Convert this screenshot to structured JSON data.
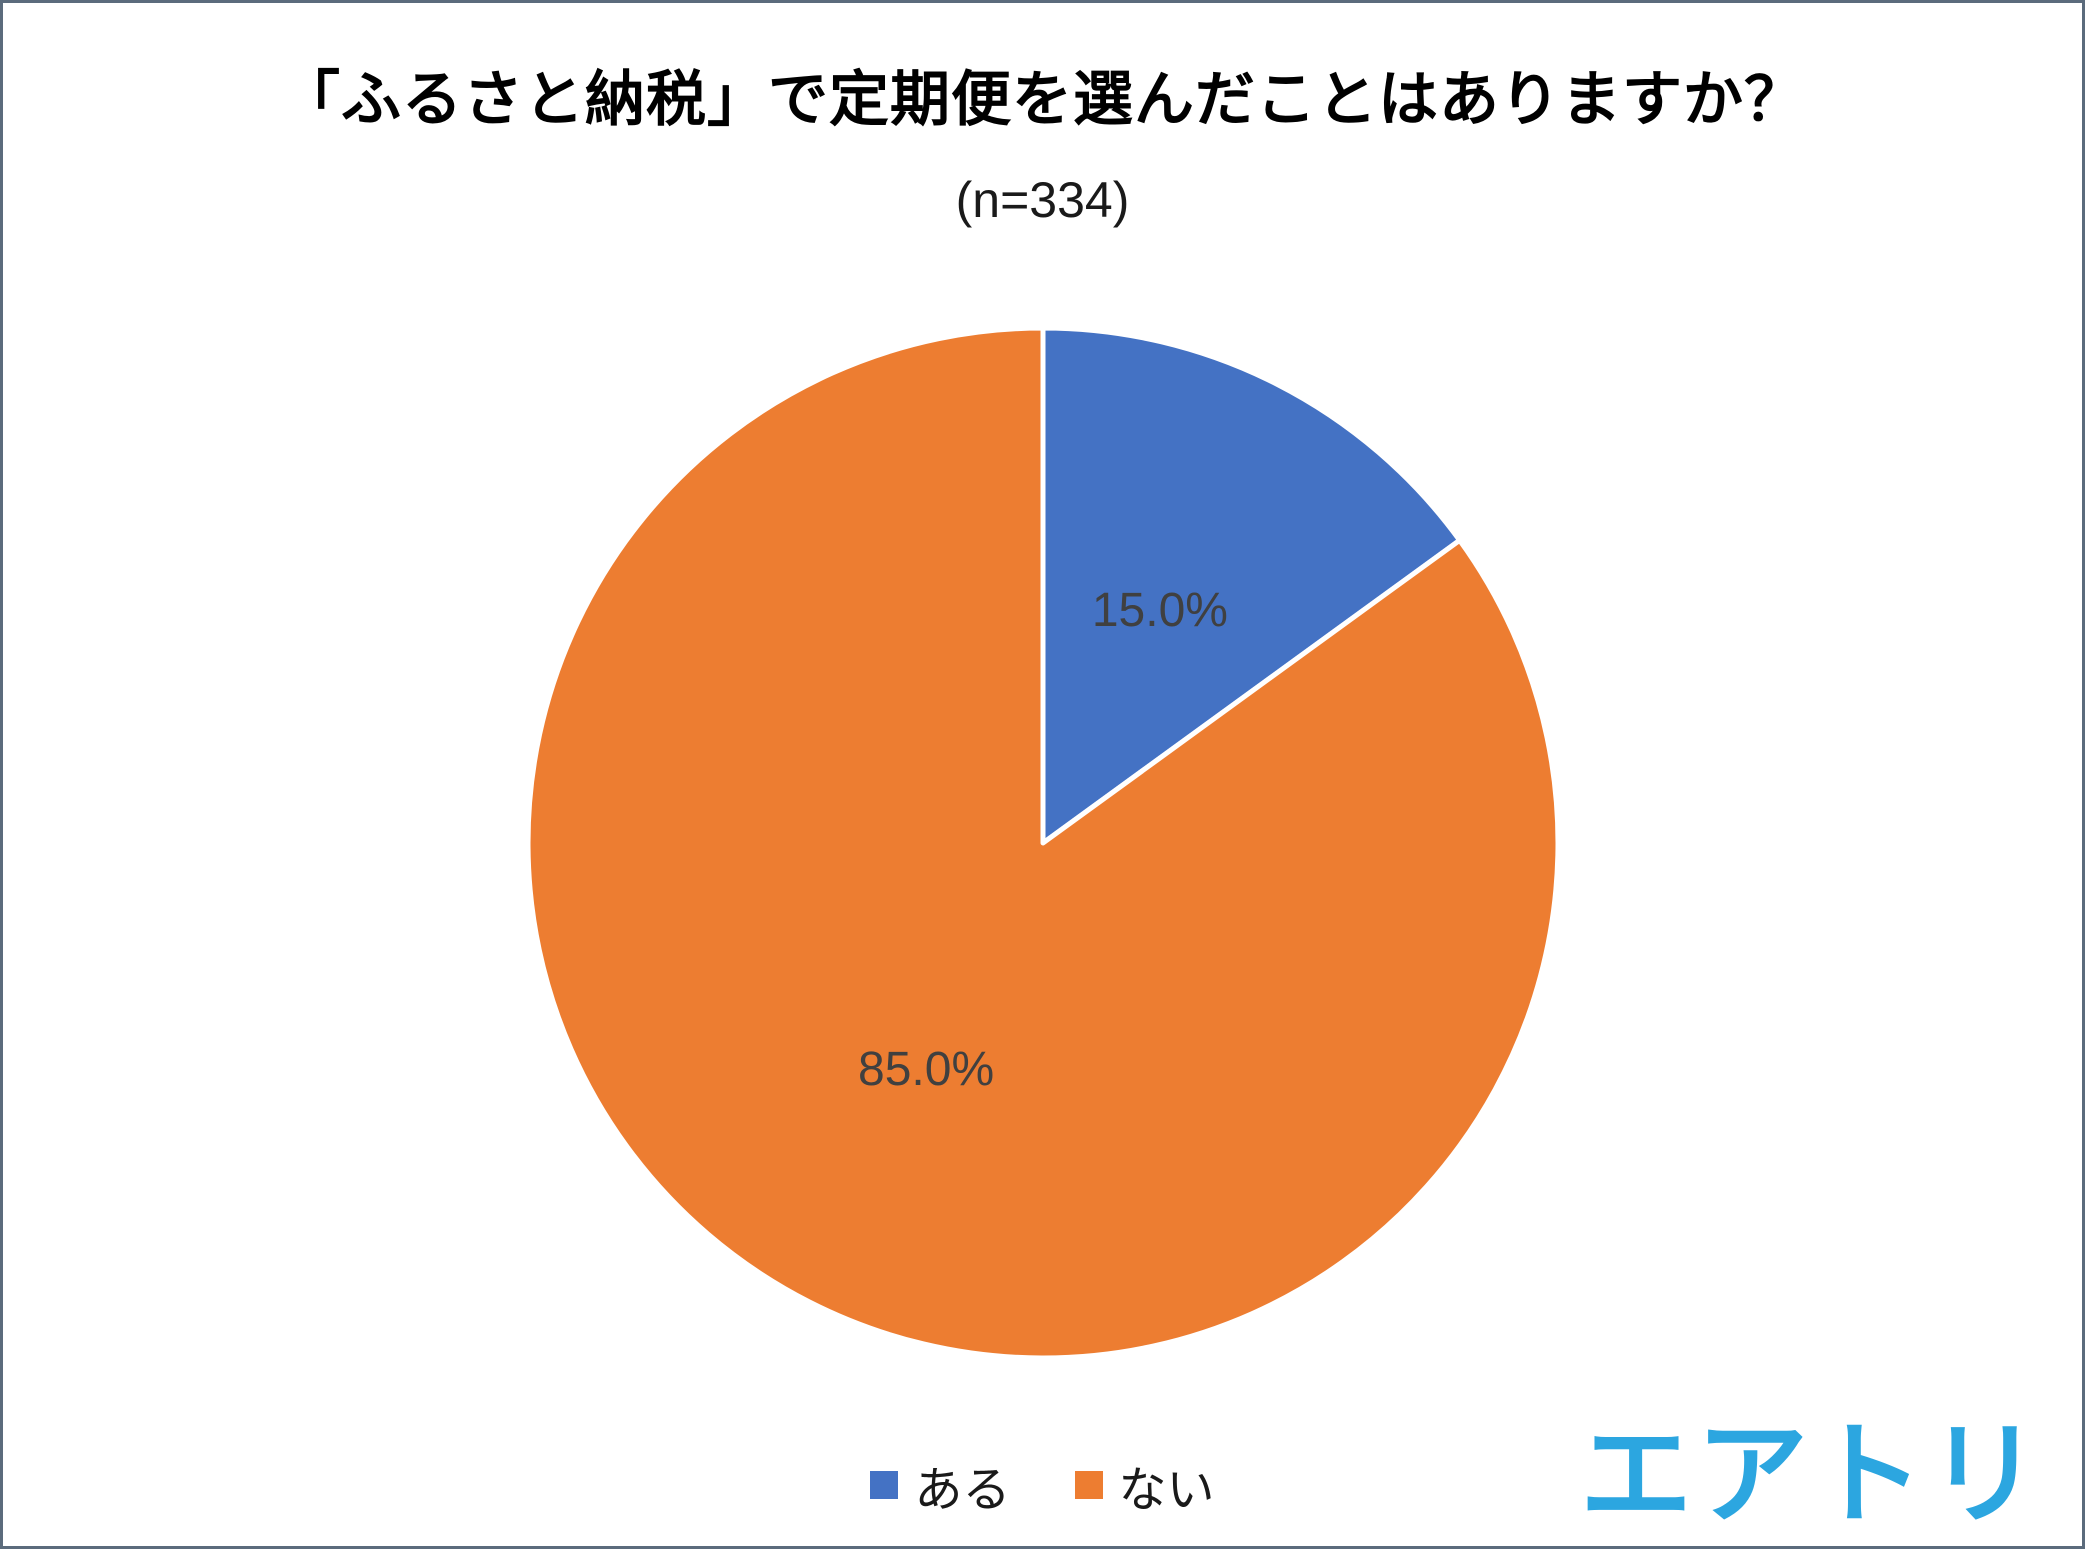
{
  "page": {
    "title": "「ふるさと納税」で定期便を選んだことはありますか？",
    "subtitle": "(n=334)",
    "logo_text": "エアトリ",
    "logo_color": "#2CA6E0",
    "border_color": "#5b6b7c"
  },
  "legend": {
    "items": [
      {
        "label": "ある",
        "color": "#4472C4"
      },
      {
        "label": "ない",
        "color": "#ED7D31"
      }
    ]
  },
  "chart_data": {
    "type": "pie",
    "title": "「ふるさと納税」で定期便を選んだことはありますか？",
    "subtitle": "(n=334)",
    "sample_size": 334,
    "categories": [
      "ある",
      "ない"
    ],
    "values": [
      15.0,
      85.0
    ],
    "data_labels": [
      "15.0%",
      "85.0%"
    ],
    "colors": [
      "#4472C4",
      "#ED7D31"
    ],
    "label_color": "#404040",
    "slice_border_color": "#ffffff",
    "start_angle_deg": 0,
    "direction": "clockwise",
    "legend_position": "bottom"
  }
}
